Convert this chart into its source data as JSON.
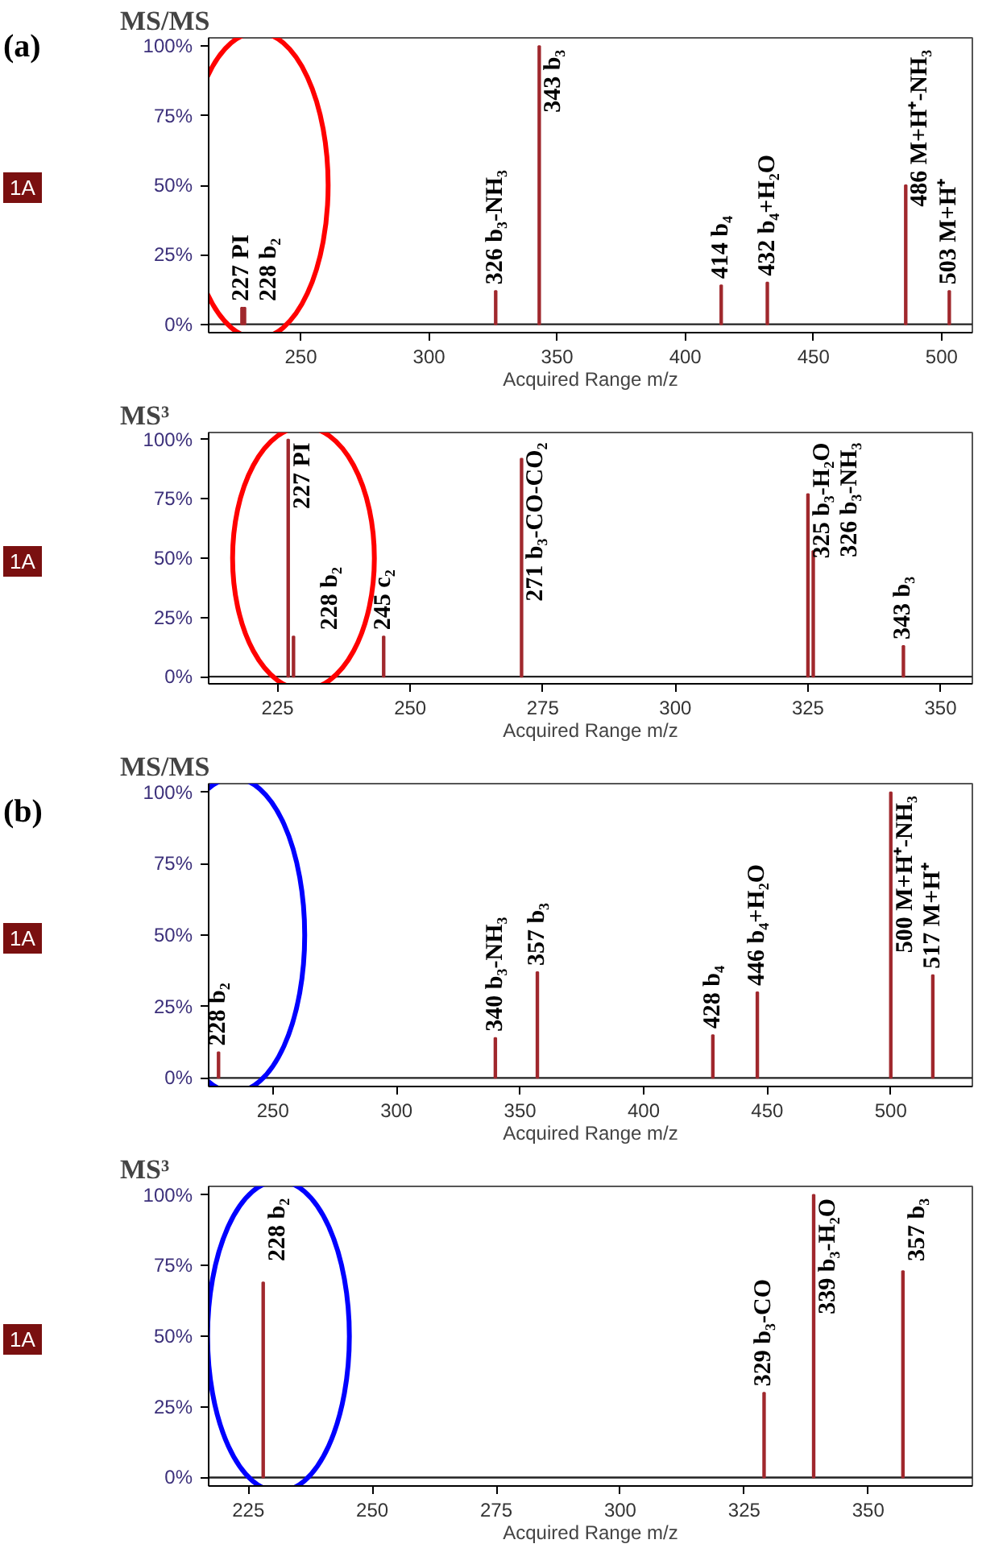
{
  "chart_data": [
    {
      "type": "bar",
      "title": "MS/MS",
      "xlabel": "Acquired Range m/z",
      "color": "#a0282d",
      "x": [
        227,
        228,
        326,
        343,
        414,
        432,
        486,
        503
      ],
      "values": [
        6,
        6,
        12,
        100,
        14,
        15,
        50,
        12
      ],
      "xlim": [
        214,
        512
      ],
      "xticks": [
        250,
        300,
        350,
        400,
        450,
        500
      ],
      "ylim": [
        -3,
        103
      ],
      "yticks": [
        {
          "value": 0,
          "label": "0%"
        },
        {
          "value": 25,
          "label": "25%"
        },
        {
          "value": 50,
          "label": "50%"
        },
        {
          "value": 75,
          "label": "75%"
        },
        {
          "value": 100,
          "label": "100%"
        }
      ],
      "annotations": [
        "(a)",
        "1A",
        {
          "text": "227 PI",
          "x": 227,
          "y": 6
        },
        {
          "text": "228 b₂",
          "x": 228,
          "y": 6
        },
        {
          "text": "326 b₃-NH₃",
          "x": 326,
          "y": 12
        },
        {
          "text": "343 b₃",
          "x": 343,
          "y": 100
        },
        {
          "text": "414 b₄",
          "x": 414,
          "y": 14
        },
        {
          "text": "432 b₄+H₂O",
          "x": 432,
          "y": 15
        },
        {
          "text": "486 M+H⁺-NH₃",
          "x": 486,
          "y": 50
        },
        {
          "text": "503 M+H⁺",
          "x": 503,
          "y": 12
        }
      ]
    },
    {
      "type": "bar",
      "title": "MS³",
      "xlabel": "Acquired Range m/z",
      "color": "#a0282d",
      "x": [
        227,
        228,
        245,
        271,
        325,
        326,
        343
      ],
      "values": [
        100,
        17,
        17,
        92,
        77,
        53,
        13
      ],
      "xlim": [
        212,
        356
      ],
      "xticks": [
        225,
        250,
        275,
        300,
        325,
        350
      ],
      "ylim": [
        -3,
        103
      ],
      "yticks": [
        {
          "value": 0,
          "label": "0%"
        },
        {
          "value": 25,
          "label": "25%"
        },
        {
          "value": 50,
          "label": "50%"
        },
        {
          "value": 75,
          "label": "75%"
        },
        {
          "value": 100,
          "label": "100%"
        }
      ],
      "annotations": [
        "1A",
        {
          "text": "227 PI",
          "x": 227,
          "y": 100
        },
        {
          "text": "228 b₂",
          "x": 228,
          "y": 17
        },
        {
          "text": "245 c₂",
          "x": 245,
          "y": 17
        },
        {
          "text": "271 b₃-CO-CO₂",
          "x": 271,
          "y": 92
        },
        {
          "text": "325 b₃-H₂O",
          "x": 325,
          "y": 77
        },
        {
          "text": "326 b₃-NH₃",
          "x": 326,
          "y": 53
        },
        {
          "text": "343 b₃",
          "x": 343,
          "y": 13
        }
      ]
    },
    {
      "type": "bar",
      "title": "MS/MS",
      "xlabel": "Acquired Range m/z",
      "color": "#a0282d",
      "x": [
        228,
        340,
        357,
        428,
        446,
        500,
        517
      ],
      "values": [
        9,
        14,
        37,
        15,
        30,
        100,
        36
      ],
      "xlim": [
        224,
        533
      ],
      "xticks": [
        250,
        300,
        350,
        400,
        450,
        500
      ],
      "ylim": [
        -3,
        103
      ],
      "yticks": [
        {
          "value": 0,
          "label": "0%"
        },
        {
          "value": 25,
          "label": "25%"
        },
        {
          "value": 50,
          "label": "50%"
        },
        {
          "value": 75,
          "label": "75%"
        },
        {
          "value": 100,
          "label": "100%"
        }
      ],
      "annotations": [
        "(b)",
        "1A",
        {
          "text": "228 b₂",
          "x": 228,
          "y": 9
        },
        {
          "text": "340 b₃-NH₃",
          "x": 340,
          "y": 14
        },
        {
          "text": "357 b₃",
          "x": 357,
          "y": 37
        },
        {
          "text": "428 b₄",
          "x": 428,
          "y": 15
        },
        {
          "text": "446 b₄+H₂O",
          "x": 446,
          "y": 30
        },
        {
          "text": "500 M+H⁺-NH₃",
          "x": 500,
          "y": 100
        },
        {
          "text": "517 M+H⁺",
          "x": 517,
          "y": 36
        }
      ]
    },
    {
      "type": "bar",
      "title": "MS³",
      "xlabel": "Acquired Range m/z",
      "color": "#a0282d",
      "x": [
        228,
        329,
        339,
        357
      ],
      "values": [
        69,
        30,
        100,
        73
      ],
      "xlim": [
        217,
        371
      ],
      "xticks": [
        225,
        250,
        275,
        300,
        325,
        350
      ],
      "ylim": [
        -3,
        103
      ],
      "yticks": [
        {
          "value": 0,
          "label": "0%"
        },
        {
          "value": 25,
          "label": "25%"
        },
        {
          "value": 50,
          "label": "50%"
        },
        {
          "value": 75,
          "label": "75%"
        },
        {
          "value": 100,
          "label": "100%"
        }
      ],
      "annotations": [
        "1A",
        {
          "text": "228 b₂",
          "x": 228,
          "y": 69
        },
        {
          "text": "329 b₃-CO",
          "x": 329,
          "y": 30
        },
        {
          "text": "339 b₃-H₂O",
          "x": 339,
          "y": 100
        },
        {
          "text": "357 b₃",
          "x": 357,
          "y": 73
        }
      ]
    }
  ]
}
